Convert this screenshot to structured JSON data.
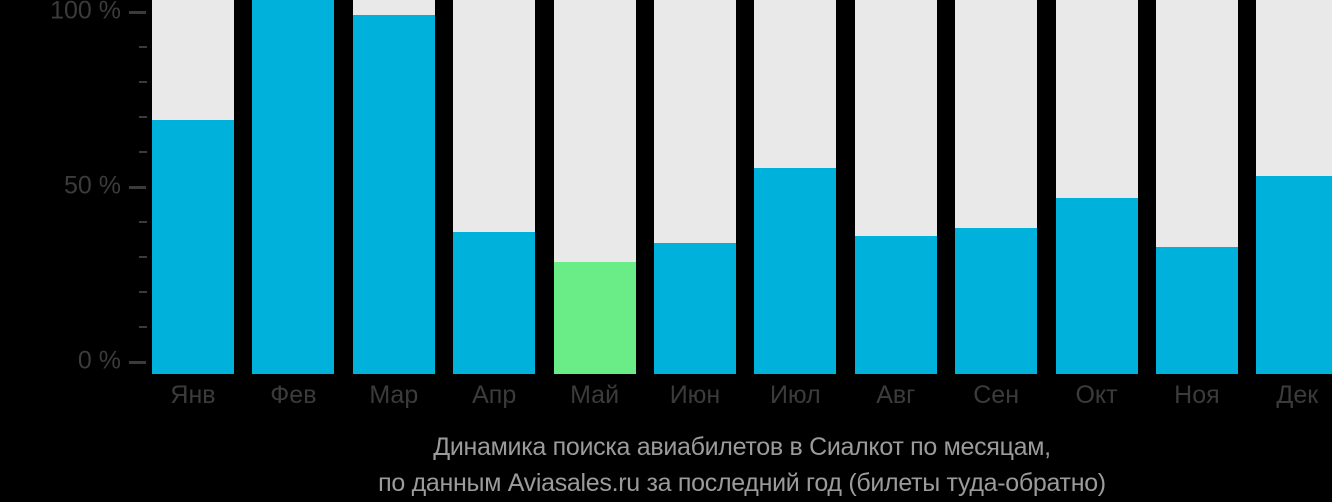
{
  "chart_data": {
    "type": "bar",
    "title": "Динамика поиска авиабилетов в Сиалкот по месяцам, по данным Aviasales.ru за последний год (билеты туда-обратно)",
    "title_lines": [
      "Динамика поиска авиабилетов в Сиалкот по месяцам,",
      "по данным Aviasales.ru за последний год (билеты туда-обратно)"
    ],
    "categories": [
      "Янв",
      "Фев",
      "Мар",
      "Апр",
      "Май",
      "Июн",
      "Июл",
      "Авг",
      "Сен",
      "Окт",
      "Ноя",
      "Дек"
    ],
    "values": [
      68,
      100,
      96,
      38,
      30,
      35,
      55,
      37,
      39,
      47,
      34,
      53
    ],
    "unit": "%",
    "highlight": {
      "index": 4,
      "category": "Май",
      "value": 30
    },
    "ylim": [
      0,
      100
    ],
    "y_major_ticks": [
      {
        "value": 100,
        "label": "100 %"
      },
      {
        "value": 50,
        "label": "50 %"
      },
      {
        "value": 0,
        "label": "0 %"
      }
    ],
    "y_minor_tick_step": 10,
    "grid": "off",
    "legend": "none",
    "colors": {
      "bar": "#00b1dc",
      "bar_highlight": "#6aed87",
      "track": "#e9e9e9",
      "axis_text": "#3b3b3b",
      "tick_mark": "#3b3b3b",
      "title_text": "#9b9b9b",
      "background": "#000000"
    }
  }
}
